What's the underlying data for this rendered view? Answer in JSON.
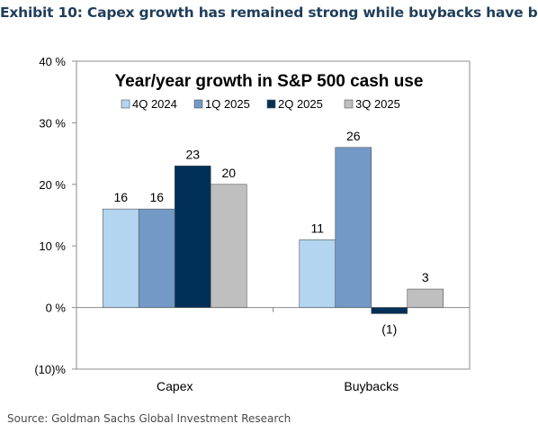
{
  "exhibit_title": "Exhibit 10: Capex growth has remained strong while buybacks have b",
  "source": "Source: Goldman Sachs Global Investment Research",
  "chart_data": {
    "type": "bar",
    "title": "Year/year growth in S&P 500 cash use",
    "categories": [
      "Capex",
      "Buybacks"
    ],
    "series": [
      {
        "name": "4Q 2024",
        "color": "#b3d5f0",
        "values": [
          16,
          11
        ],
        "labels": [
          "16",
          "11"
        ]
      },
      {
        "name": "1Q 2025",
        "color": "#7399c6",
        "values": [
          16,
          26
        ],
        "labels": [
          "16",
          "26"
        ]
      },
      {
        "name": "2Q 2025",
        "color": "#003057",
        "values": [
          23,
          -1
        ],
        "labels": [
          "23",
          "(1)"
        ]
      },
      {
        "name": "3Q 2025",
        "color": "#bfbfbf",
        "values": [
          20,
          3
        ],
        "labels": [
          "20",
          "3"
        ]
      }
    ],
    "ylim": [
      -10,
      40
    ],
    "yticks": [
      40,
      30,
      20,
      10,
      0,
      -10
    ],
    "ytick_labels": [
      "40 %",
      "30 %",
      "20 %",
      "10 %",
      "0 %",
      "(10)%"
    ],
    "xlabel": "",
    "ylabel": "",
    "legend_position": "top",
    "grid": false
  }
}
